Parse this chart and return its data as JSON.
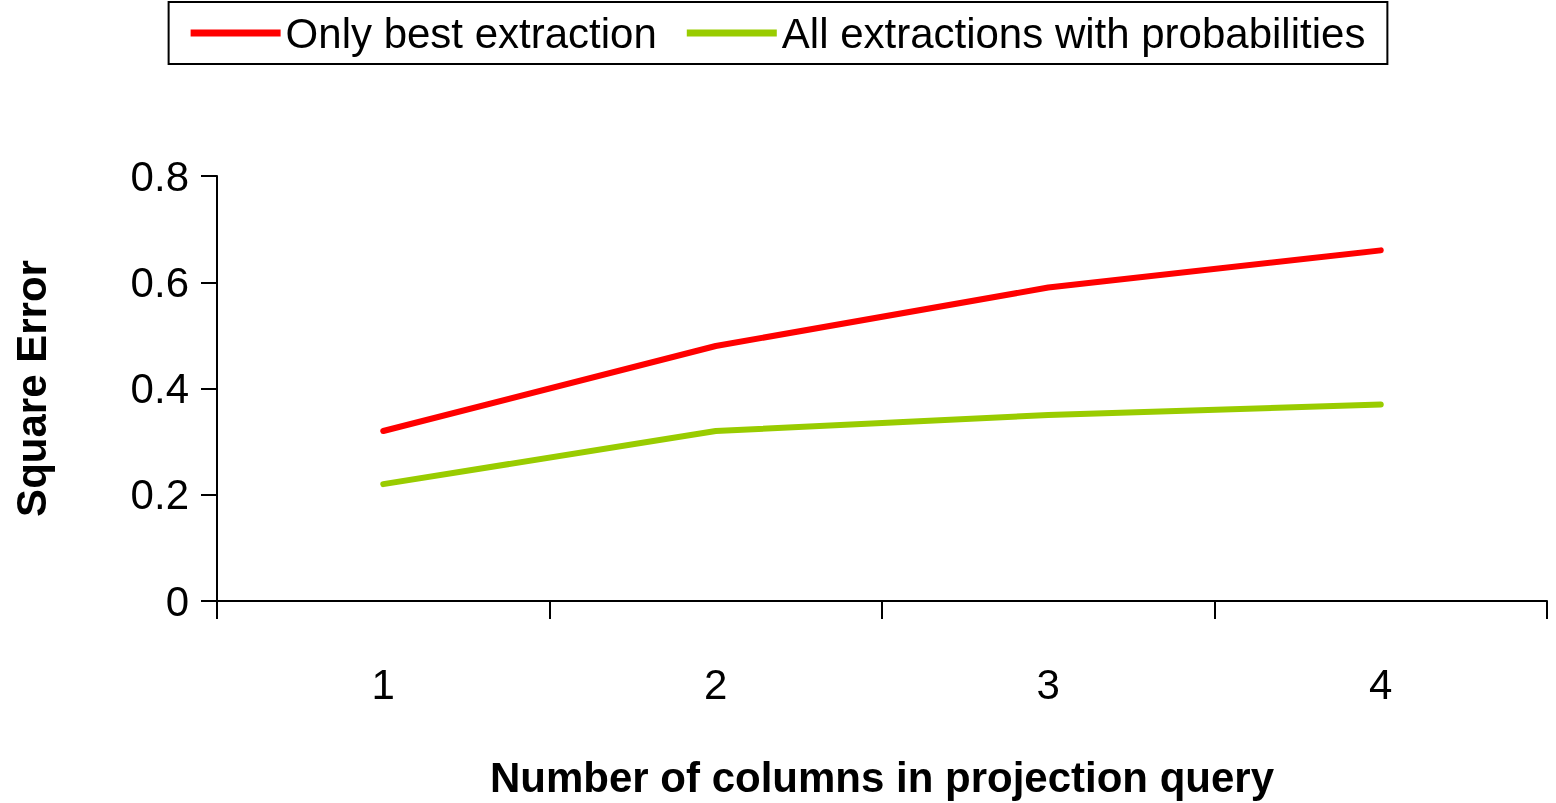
{
  "chart_data": {
    "type": "line",
    "xlabel": "Number of columns in projection query",
    "ylabel": "Square Error",
    "categories": [
      "1",
      "2",
      "3",
      "4"
    ],
    "series": [
      {
        "name": "Only best extraction",
        "color": "#ff0000",
        "values": [
          0.32,
          0.48,
          0.59,
          0.66
        ]
      },
      {
        "name": "All extractions with probabilities",
        "color": "#99cc00",
        "values": [
          0.22,
          0.32,
          0.35,
          0.37
        ]
      }
    ],
    "ylim": [
      0,
      0.8
    ],
    "yticks": [
      0,
      0.2,
      0.4,
      0.6,
      0.8
    ],
    "grid": false,
    "legend": "top",
    "marker": "none",
    "line_style": "solid"
  }
}
